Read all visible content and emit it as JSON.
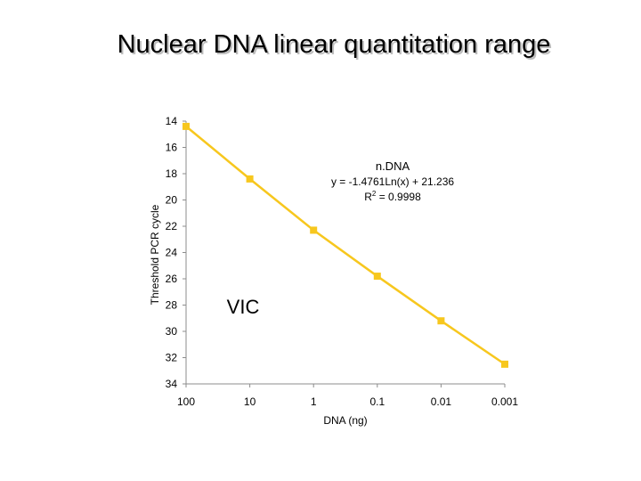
{
  "title": "Nuclear DNA linear quantitation range",
  "chart_data": {
    "type": "line",
    "xscale": "log",
    "x": [
      100,
      10,
      1,
      0.1,
      0.01,
      0.001
    ],
    "x_tick_labels": [
      "100",
      "10",
      "1",
      "0.1",
      "0.01",
      "0.001"
    ],
    "series": [
      {
        "values": [
          14.4,
          18.4,
          22.3,
          25.8,
          29.2,
          32.5
        ],
        "color": "#f7c71e"
      }
    ],
    "ylim": [
      14,
      34
    ],
    "y_inverted": true,
    "y_ticks": [
      14,
      16,
      18,
      20,
      22,
      24,
      26,
      28,
      30,
      32,
      34
    ],
    "xlabel": "DNA (ng)",
    "ylabel": "Threshold PCR cycle",
    "grid": false,
    "annotations": {
      "series_label": "n.DNA",
      "equation": "y = -1.4761Ln(x) + 21.236",
      "r2_prefix": "R",
      "r2_sup": "2",
      "r2_value": " = 0.9998",
      "dye_label": "VIC"
    }
  }
}
